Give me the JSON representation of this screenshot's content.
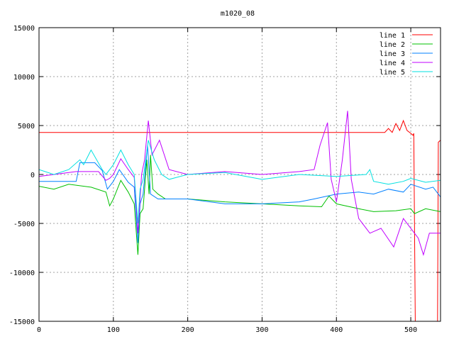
{
  "chart_data": {
    "type": "line",
    "title": "m1020_08",
    "xlabel": "",
    "ylabel": "",
    "xlim": [
      0,
      540
    ],
    "ylim": [
      -15000,
      15000
    ],
    "xticks": [
      0,
      100,
      200,
      300,
      400,
      500
    ],
    "yticks": [
      -15000,
      -10000,
      -5000,
      0,
      5000,
      10000,
      15000
    ],
    "grid": true,
    "legend_position": "top-right",
    "series": [
      {
        "name": "line 1",
        "color": "#ff0000",
        "x": [
          0,
          465,
          470,
          475,
          480,
          485,
          490,
          495,
          500,
          503,
          504,
          506,
          535,
          536,
          537,
          540
        ],
        "y": [
          4300,
          4300,
          4700,
          4300,
          5200,
          4500,
          5500,
          4500,
          4200,
          4000,
          4200,
          -15000,
          -15000,
          -15000,
          3300,
          3500
        ]
      },
      {
        "name": "line 2",
        "color": "#00c000",
        "x": [
          0,
          20,
          40,
          70,
          90,
          95,
          100,
          110,
          120,
          128,
          133,
          136,
          140,
          145,
          148,
          150,
          153,
          160,
          170,
          200,
          250,
          300,
          350,
          380,
          390,
          400,
          430,
          450,
          480,
          500,
          505,
          520,
          540
        ],
        "y": [
          -1200,
          -1500,
          -1000,
          -1300,
          -1800,
          -3200,
          -2500,
          -600,
          -1800,
          -3000,
          -8200,
          -4000,
          -3500,
          1500,
          -2000,
          2000,
          -1500,
          -2000,
          -2500,
          -2500,
          -2800,
          -3000,
          -3200,
          -3300,
          -2200,
          -3000,
          -3500,
          -3800,
          -3700,
          -3500,
          -4000,
          -3500,
          -3800
        ]
      },
      {
        "name": "line 3",
        "color": "#0080ff",
        "x": [
          0,
          50,
          55,
          75,
          85,
          92,
          100,
          108,
          120,
          128,
          133,
          136,
          140,
          146,
          150,
          160,
          200,
          250,
          300,
          350,
          370,
          400,
          430,
          450,
          470,
          490,
          500,
          520,
          530,
          540
        ],
        "y": [
          -700,
          -700,
          1200,
          1200,
          400,
          -1500,
          -700,
          500,
          -800,
          -1300,
          -7000,
          -3000,
          -2000,
          3000,
          -2000,
          -2500,
          -2500,
          -3000,
          -3000,
          -2800,
          -2500,
          -2000,
          -1800,
          -2000,
          -1500,
          -1800,
          -1000,
          -1500,
          -1300,
          -2300
        ]
      },
      {
        "name": "line 4",
        "color": "#c000ff",
        "x": [
          0,
          20,
          50,
          80,
          90,
          95,
          100,
          110,
          120,
          128,
          133,
          138,
          142,
          147,
          152,
          162,
          175,
          200,
          250,
          300,
          350,
          370,
          378,
          388,
          393,
          400,
          408,
          415,
          420,
          430,
          445,
          460,
          477,
          490,
          500,
          510,
          517,
          525,
          540
        ],
        "y": [
          -200,
          0,
          300,
          300,
          -600,
          -400,
          0,
          1600,
          500,
          -300,
          -6000,
          0,
          1500,
          5500,
          2000,
          3500,
          500,
          0,
          300,
          0,
          300,
          500,
          3000,
          5300,
          -500,
          -2800,
          1500,
          6500,
          -500,
          -4500,
          -6000,
          -5500,
          -7400,
          -4500,
          -5500,
          -6500,
          -8200,
          -6000,
          -6000
        ]
      },
      {
        "name": "line 5",
        "color": "#00e0e0",
        "x": [
          0,
          20,
          40,
          55,
          60,
          70,
          85,
          90,
          100,
          110,
          120,
          128,
          133,
          136,
          140,
          147,
          155,
          165,
          175,
          200,
          250,
          300,
          350,
          400,
          440,
          445,
          450,
          470,
          490,
          500,
          520,
          540
        ],
        "y": [
          500,
          0,
          500,
          1500,
          1000,
          2500,
          500,
          0,
          1000,
          2500,
          1000,
          0,
          -5000,
          -1500,
          -500,
          3500,
          1500,
          0,
          -500,
          0,
          200,
          -500,
          0,
          -200,
          0,
          500,
          -700,
          -1000,
          -700,
          -400,
          -800,
          -600
        ]
      }
    ]
  }
}
